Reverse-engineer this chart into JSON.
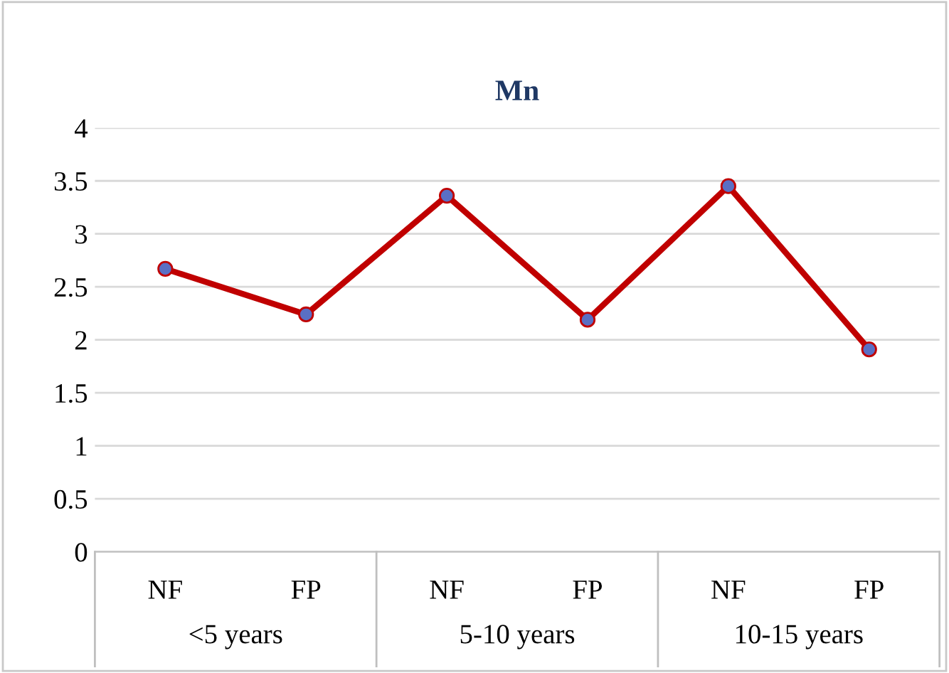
{
  "chart_data": {
    "type": "line",
    "title": "Mn",
    "categories": [
      "NF",
      "FP",
      "NF",
      "FP",
      "NF",
      "FP"
    ],
    "series": [
      {
        "color": "#c00000",
        "values": [
          2.67,
          2.24,
          3.36,
          2.19,
          3.45,
          1.91
        ]
      }
    ],
    "annotations": [
      "<5 years",
      "5-10 years",
      "10-15 years"
    ],
    "ylim": [
      0,
      4
    ],
    "yticks": [
      0,
      0.5,
      1,
      1.5,
      2,
      2.5,
      3,
      3.5,
      4
    ],
    "grid": "y",
    "marker": "circle",
    "line_style": "solid"
  }
}
